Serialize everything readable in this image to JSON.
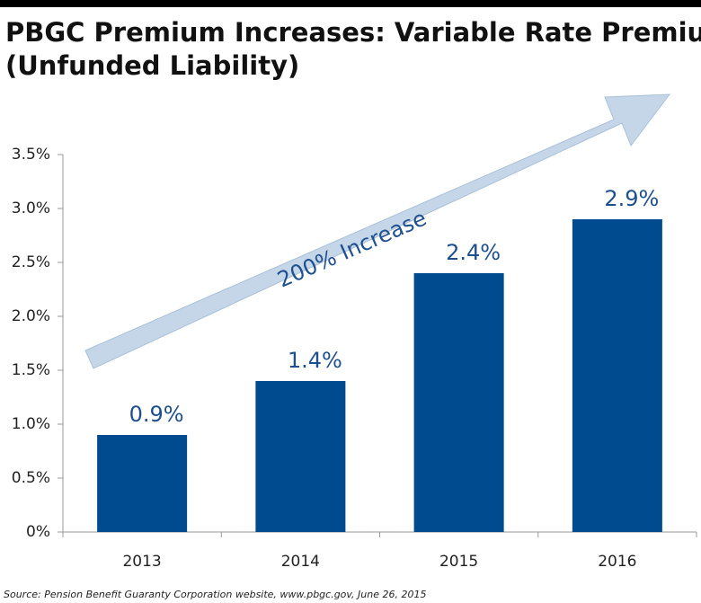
{
  "chart_data": {
    "type": "bar",
    "title": "PBGC Premium Increases: Variable Rate Premium",
    "subtitle": "(Unfunded Liability)",
    "annotation": "200% Increase",
    "source": "Source: Pension Benefit Guaranty Corporation website, www.pbgc.gov, June 26, 2015",
    "categories": [
      "2013",
      "2014",
      "2015",
      "2016"
    ],
    "values": [
      0.9,
      1.4,
      2.4,
      2.9
    ],
    "value_labels": [
      "0.9%",
      "1.4%",
      "2.4%",
      "2.9%"
    ],
    "color": "#004a8f",
    "ylim": [
      0,
      3.5
    ],
    "yticks": [
      {
        "value": 0,
        "label": "0%"
      },
      {
        "value": 0.5,
        "label": "0.5%"
      },
      {
        "value": 1,
        "label": "1.0%"
      },
      {
        "value": 1.5,
        "label": "1.5%"
      },
      {
        "value": 2,
        "label": "2.0%"
      },
      {
        "value": 2.5,
        "label": "2.5%"
      },
      {
        "value": 3,
        "label": "3.0%"
      },
      {
        "value": 3.5,
        "label": "3.5%"
      }
    ],
    "grid": false
  }
}
